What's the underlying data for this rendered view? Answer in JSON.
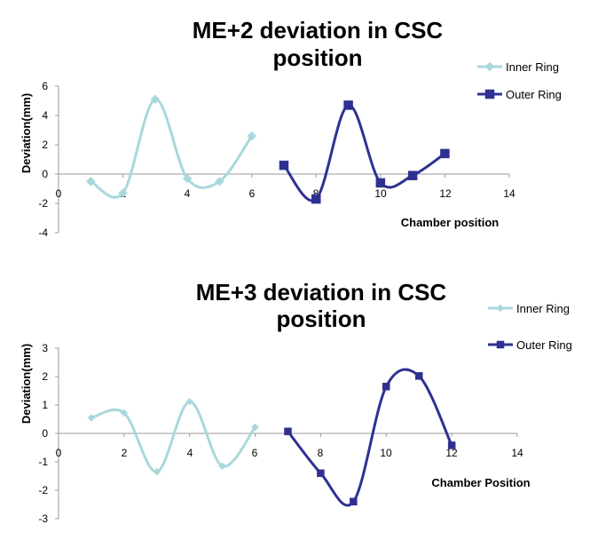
{
  "chart_data": [
    {
      "type": "line",
      "title_line1": "ME+2 deviation in CSC",
      "title_line2": "position",
      "xlabel": "Chamber position",
      "ylabel": "Deviation(mm)",
      "xlim": [
        0,
        14
      ],
      "ylim": [
        -4,
        6
      ],
      "x_ticks": [
        "0",
        "2",
        "4",
        "6",
        "8",
        "10",
        "12",
        "14"
      ],
      "y_ticks": [
        "-4",
        "-2",
        "0",
        "2",
        "4",
        "6"
      ],
      "grid": false,
      "legend_position": "right",
      "series": [
        {
          "name": "Inner Ring",
          "color": "#a8d8dc",
          "marker": "diamond",
          "x": [
            1,
            2,
            3,
            4,
            5,
            6
          ],
          "y": [
            -0.5,
            -1.3,
            5.1,
            -0.3,
            -0.5,
            2.6
          ]
        },
        {
          "name": "Outer Ring",
          "color": "#2e3192",
          "marker": "square",
          "x": [
            7,
            8,
            9,
            10,
            11,
            12
          ],
          "y": [
            0.6,
            -1.7,
            4.7,
            -0.6,
            -0.1,
            1.4
          ]
        }
      ]
    },
    {
      "type": "line",
      "title_line1": "ME+3 deviation in CSC",
      "title_line2": "position",
      "xlabel": "Chamber Position",
      "ylabel": "Deviation(mm)",
      "xlim": [
        0,
        14
      ],
      "ylim": [
        -3,
        3
      ],
      "x_ticks": [
        "0",
        "2",
        "4",
        "6",
        "8",
        "10",
        "12",
        "14"
      ],
      "y_ticks": [
        "-3",
        "-2",
        "-1",
        "0",
        "1",
        "2",
        "3"
      ],
      "grid": false,
      "legend_position": "right",
      "series": [
        {
          "name": "Inner Ring",
          "color": "#a8d8dc",
          "marker": "diamond",
          "x": [
            1,
            2,
            3,
            4,
            5,
            6
          ],
          "y": [
            0.55,
            0.72,
            -1.35,
            1.12,
            -1.15,
            0.22
          ]
        },
        {
          "name": "Outer Ring",
          "color": "#2e3192",
          "marker": "square",
          "x": [
            7,
            8,
            9,
            10,
            11,
            12
          ],
          "y": [
            0.07,
            -1.4,
            -2.4,
            1.65,
            2.02,
            -0.42
          ]
        }
      ]
    }
  ]
}
